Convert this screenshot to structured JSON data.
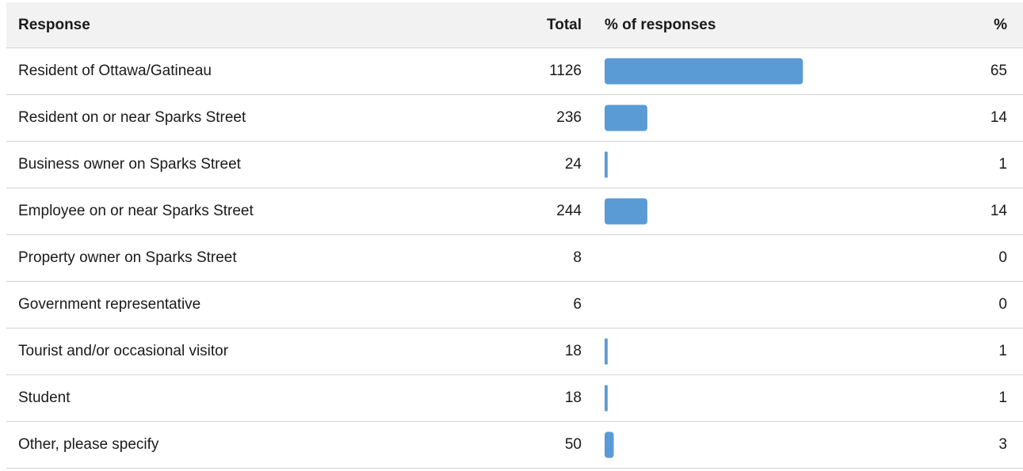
{
  "header": {
    "response": "Response",
    "total": "Total",
    "bar": "% of responses",
    "pct": "%"
  },
  "colors": {
    "bar": "#5b9bd5",
    "header_bg": "#f2f2f2",
    "divider": "#d4d4d4"
  },
  "chart_data": {
    "type": "table",
    "columns": [
      "Response",
      "Total",
      "% of responses",
      "%"
    ],
    "x_max_percent": 100,
    "rows": [
      {
        "response": "Resident of Ottawa/Gatineau",
        "total": "1126",
        "pct": "65"
      },
      {
        "response": "Resident on or near Sparks Street",
        "total": "236",
        "pct": "14"
      },
      {
        "response": "Business owner on Sparks Street",
        "total": "24",
        "pct": "1"
      },
      {
        "response": "Employee on or near Sparks Street",
        "total": "244",
        "pct": "14"
      },
      {
        "response": "Property owner on Sparks Street",
        "total": "8",
        "pct": "0"
      },
      {
        "response": "Government representative",
        "total": "6",
        "pct": "0"
      },
      {
        "response": "Tourist and/or occasional visitor",
        "total": "18",
        "pct": "1"
      },
      {
        "response": "Student",
        "total": "18",
        "pct": "1"
      },
      {
        "response": "Other, please specify",
        "total": "50",
        "pct": "3"
      }
    ]
  }
}
